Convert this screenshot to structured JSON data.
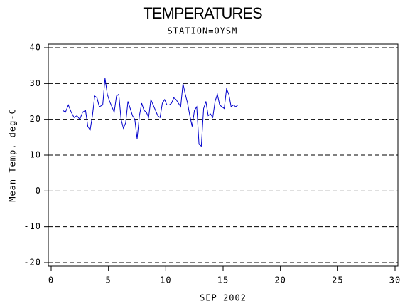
{
  "chart_data": {
    "type": "line",
    "title": "TEMPERATURES",
    "subtitle": "STATION=OYSM",
    "x_label": "SEP 2002",
    "y_label": "Mean Temp. deg-C",
    "xlim": [
      0,
      30
    ],
    "xticks": [
      0,
      5,
      10,
      15,
      20,
      25,
      30
    ],
    "ylim": [
      -20,
      40
    ],
    "yticks": [
      -20,
      -10,
      0,
      10,
      20,
      30,
      40
    ],
    "grid": true,
    "series": [
      {
        "color": "#0000cc",
        "x": [
          1.0,
          1.25,
          1.5,
          1.75,
          2.0,
          2.25,
          2.5,
          2.75,
          3.0,
          3.2,
          3.4,
          3.6,
          3.8,
          4.0,
          4.2,
          4.5,
          4.7,
          4.9,
          5.1,
          5.3,
          5.5,
          5.7,
          5.9,
          6.1,
          6.3,
          6.5,
          6.7,
          6.9,
          7.1,
          7.3,
          7.5,
          7.7,
          7.9,
          8.1,
          8.3,
          8.5,
          8.7,
          8.9,
          9.1,
          9.3,
          9.5,
          9.7,
          9.9,
          10.1,
          10.3,
          10.5,
          10.7,
          10.9,
          11.1,
          11.3,
          11.5,
          11.7,
          11.9,
          12.1,
          12.3,
          12.5,
          12.7,
          12.9,
          13.1,
          13.3,
          13.5,
          13.7,
          13.9,
          14.1,
          14.3,
          14.5,
          14.7,
          14.9,
          15.1,
          15.3,
          15.5,
          15.7,
          15.9,
          16.1,
          16.3
        ],
        "values": [
          22.5,
          22,
          24,
          22,
          20.5,
          21,
          20,
          22,
          22.5,
          18,
          17,
          21,
          26.5,
          26,
          23.5,
          24,
          31.5,
          27,
          25,
          23.5,
          22,
          26.5,
          27,
          20,
          17.5,
          19,
          25,
          23,
          21,
          20,
          14.5,
          21,
          24.5,
          22.5,
          22,
          20.5,
          25.5,
          24,
          22.5,
          21,
          20.5,
          24.5,
          25.5,
          24,
          24,
          24.5,
          26,
          25.5,
          24.5,
          23.5,
          30,
          27,
          24.5,
          21,
          18,
          22.5,
          23.5,
          13,
          12.5,
          23,
          25,
          21,
          21.5,
          20.5,
          25,
          27,
          24,
          23.5,
          23,
          28.5,
          27,
          23.5,
          24,
          23.5,
          24
        ]
      }
    ]
  }
}
